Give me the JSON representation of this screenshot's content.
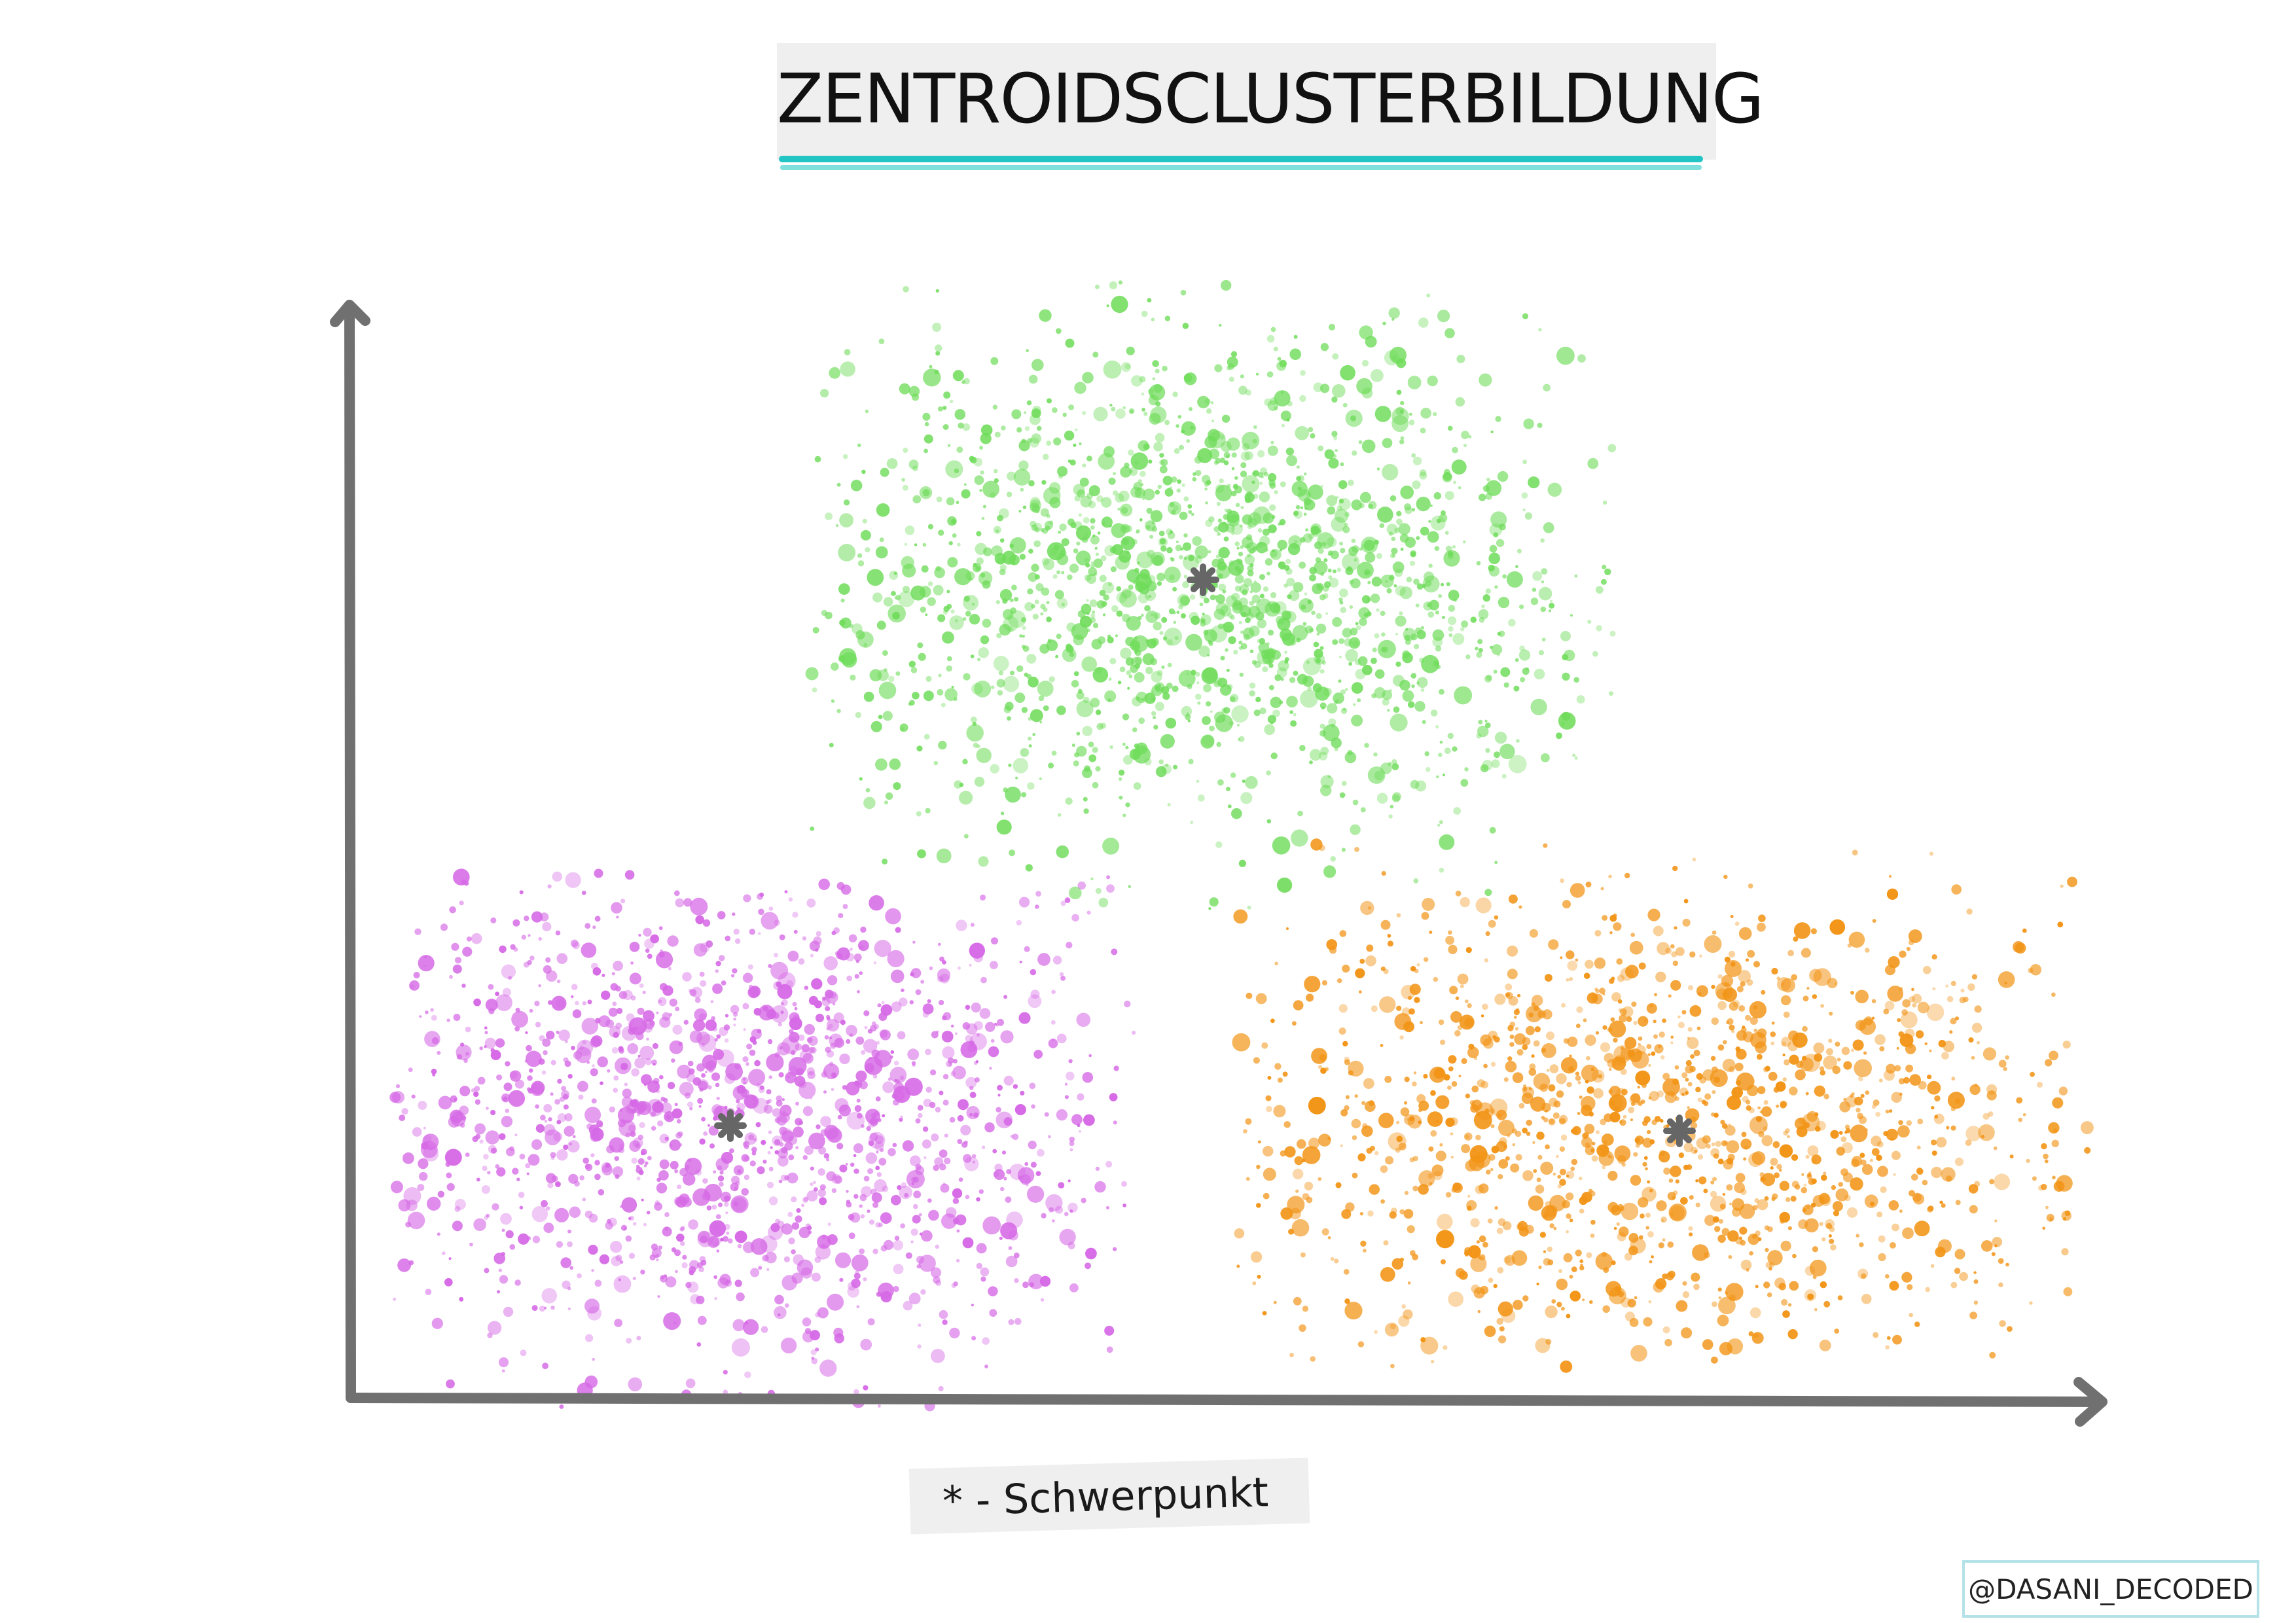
{
  "title": "ZENTROIDSCLUSTERBILDUNG",
  "legend": "* - Schwerpunkt",
  "credit": "@DASANI_DECODED",
  "colors": {
    "axis": "#707070",
    "centroid": "#666666",
    "title_underline": "#22c4c4",
    "title_underline_light": "#7fe0dd"
  },
  "clusters": [
    {
      "name": "green",
      "color": "#6fdc5a"
    },
    {
      "name": "purple",
      "color": "#d66ae6"
    },
    {
      "name": "orange",
      "color": "#f29416"
    }
  ]
}
